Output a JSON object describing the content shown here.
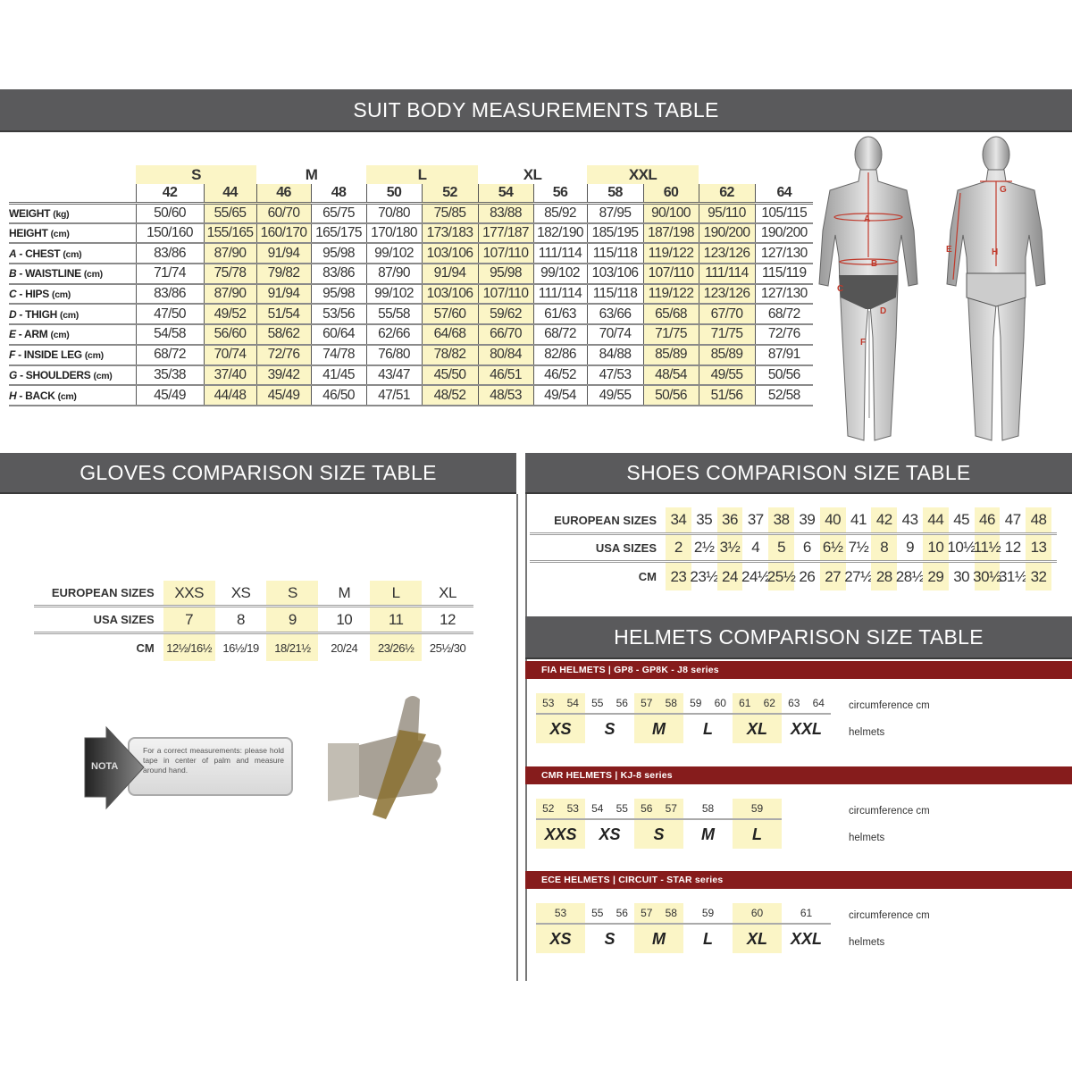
{
  "suit": {
    "title": "SUIT BODY MEASUREMENTS TABLE",
    "groups": [
      {
        "label": "",
        "span": 1,
        "highlight": false
      },
      {
        "label": "S",
        "span": 2,
        "highlight": true
      },
      {
        "label": "M",
        "span": 2,
        "highlight": false
      },
      {
        "label": "L",
        "span": 2,
        "highlight": true
      },
      {
        "label": "XL",
        "span": 2,
        "highlight": false
      },
      {
        "label": "XXL",
        "span": 2,
        "highlight": true
      },
      {
        "label": "",
        "span": 1,
        "highlight": false
      }
    ],
    "sizes": [
      "42",
      "44",
      "46",
      "48",
      "50",
      "52",
      "54",
      "56",
      "58",
      "60",
      "62",
      "64"
    ],
    "highlight_columns": [
      1,
      2,
      5,
      6,
      9,
      10
    ],
    "rows": [
      {
        "letter": "",
        "label": "WEIGHT",
        "unit": "(kg)",
        "values": [
          "50/60",
          "55/65",
          "60/70",
          "65/75",
          "70/80",
          "75/85",
          "83/88",
          "85/92",
          "87/95",
          "90/100",
          "95/110",
          "105/115"
        ]
      },
      {
        "letter": "",
        "label": "HEIGHT",
        "unit": "(cm)",
        "values": [
          "150/160",
          "155/165",
          "160/170",
          "165/175",
          "170/180",
          "173/183",
          "177/187",
          "182/190",
          "185/195",
          "187/198",
          "190/200",
          "190/200"
        ]
      },
      {
        "letter": "A",
        "label": " - CHEST",
        "unit": "(cm)",
        "values": [
          "83/86",
          "87/90",
          "91/94",
          "95/98",
          "99/102",
          "103/106",
          "107/110",
          "111/114",
          "115/118",
          "119/122",
          "123/126",
          "127/130"
        ]
      },
      {
        "letter": "B",
        "label": " - WAISTLINE",
        "unit": "(cm)",
        "values": [
          "71/74",
          "75/78",
          "79/82",
          "83/86",
          "87/90",
          "91/94",
          "95/98",
          "99/102",
          "103/106",
          "107/110",
          "111/114",
          "115/119"
        ]
      },
      {
        "letter": "C",
        "label": " - HIPS",
        "unit": "(cm)",
        "values": [
          "83/86",
          "87/90",
          "91/94",
          "95/98",
          "99/102",
          "103/106",
          "107/110",
          "111/114",
          "115/118",
          "119/122",
          "123/126",
          "127/130"
        ]
      },
      {
        "letter": "D",
        "label": " - THIGH",
        "unit": "(cm)",
        "values": [
          "47/50",
          "49/52",
          "51/54",
          "53/56",
          "55/58",
          "57/60",
          "59/62",
          "61/63",
          "63/66",
          "65/68",
          "67/70",
          "68/72"
        ]
      },
      {
        "letter": "E",
        "label": " - ARM",
        "unit": "(cm)",
        "values": [
          "54/58",
          "56/60",
          "58/62",
          "60/64",
          "62/66",
          "64/68",
          "66/70",
          "68/72",
          "70/74",
          "71/75",
          "71/75",
          "72/76"
        ]
      },
      {
        "letter": "F",
        "label": " - INSIDE LEG",
        "unit": "(cm)",
        "values": [
          "68/72",
          "70/74",
          "72/76",
          "74/78",
          "76/80",
          "78/82",
          "80/84",
          "82/86",
          "84/88",
          "85/89",
          "85/89",
          "87/91"
        ]
      },
      {
        "letter": "G",
        "label": " - SHOULDERS",
        "unit": "(cm)",
        "values": [
          "35/38",
          "37/40",
          "39/42",
          "41/45",
          "43/47",
          "45/50",
          "46/51",
          "46/52",
          "47/53",
          "48/54",
          "49/55",
          "50/56"
        ]
      },
      {
        "letter": "H",
        "label": " - BACK",
        "unit": "(cm)",
        "values": [
          "45/49",
          "44/48",
          "45/49",
          "46/50",
          "47/51",
          "48/52",
          "48/53",
          "49/54",
          "49/55",
          "50/56",
          "51/56",
          "52/58"
        ]
      }
    ],
    "figure_letters": {
      "front": [
        "A",
        "B",
        "C",
        "D",
        "E",
        "F"
      ],
      "back": [
        "G",
        "E",
        "H"
      ]
    },
    "figure_letter_color": "#c0392b"
  },
  "gloves": {
    "title": "GLOVES COMPARISON SIZE TABLE",
    "highlight_columns": [
      0,
      2,
      4
    ],
    "rows": [
      {
        "label": "EUROPEAN SIZES",
        "values": [
          "XXS",
          "XS",
          "S",
          "M",
          "L",
          "XL"
        ]
      },
      {
        "label": "USA SIZES",
        "values": [
          "7",
          "8",
          "9",
          "10",
          "11",
          "12"
        ]
      },
      {
        "label": "CM",
        "values": [
          "12½/16½",
          "16½/19",
          "18/21½",
          "20/24",
          "23/26½",
          "25½/30"
        ]
      }
    ],
    "note": {
      "badge": "NOTA",
      "text": "For a correct measurements: please hold tape in center of palm and measure around hand."
    },
    "icon": "thumbs-up-hand-with-tape"
  },
  "shoes": {
    "title": "SHOES COMPARISON SIZE TABLE",
    "highlight_columns": [
      0,
      2,
      4,
      6,
      8,
      10,
      12,
      14
    ],
    "rows": [
      {
        "label": "EUROPEAN SIZES",
        "values": [
          "34",
          "35",
          "36",
          "37",
          "38",
          "39",
          "40",
          "41",
          "42",
          "43",
          "44",
          "45",
          "46",
          "47",
          "48"
        ]
      },
      {
        "label": "USA SIZES",
        "values": [
          "2",
          "2½",
          "3½",
          "4",
          "5",
          "6",
          "6½",
          "7½",
          "8",
          "9",
          "10",
          "10½",
          "11½",
          "12",
          "13"
        ]
      },
      {
        "label": "CM",
        "values": [
          "23",
          "23½",
          "24",
          "24½",
          "25½",
          "26",
          "27",
          "27½",
          "28",
          "28½",
          "29",
          "30",
          "30½",
          "31½",
          "32"
        ]
      }
    ]
  },
  "helmets": {
    "title": "HELMETS COMPARISON SIZE TABLE",
    "circumference_label": "circumference cm",
    "helmets_label": "helmets",
    "groups": [
      {
        "title": "FIA HELMETS  |  GP8 - GP8K - J8 series",
        "sizes": [
          {
            "size": "XS",
            "nums": [
              "53",
              "54"
            ],
            "highlight": true
          },
          {
            "size": "S",
            "nums": [
              "55",
              "56"
            ],
            "highlight": false
          },
          {
            "size": "M",
            "nums": [
              "57",
              "58"
            ],
            "highlight": true
          },
          {
            "size": "L",
            "nums": [
              "59",
              "60"
            ],
            "highlight": false
          },
          {
            "size": "XL",
            "nums": [
              "61",
              "62"
            ],
            "highlight": true
          },
          {
            "size": "XXL",
            "nums": [
              "63",
              "64"
            ],
            "highlight": false
          }
        ]
      },
      {
        "title": "CMR HELMETS  |  KJ-8 series",
        "sizes": [
          {
            "size": "XXS",
            "nums": [
              "52",
              "53"
            ],
            "highlight": true
          },
          {
            "size": "XS",
            "nums": [
              "54",
              "55"
            ],
            "highlight": false
          },
          {
            "size": "S",
            "nums": [
              "56",
              "57"
            ],
            "highlight": true
          },
          {
            "size": "M",
            "nums": [
              "58"
            ],
            "highlight": false
          },
          {
            "size": "L",
            "nums": [
              "59"
            ],
            "highlight": true
          }
        ]
      },
      {
        "title": "ECE HELMETS  |  CIRCUIT - STAR series",
        "sizes": [
          {
            "size": "XS",
            "nums": [
              "53"
            ],
            "highlight": true
          },
          {
            "size": "S",
            "nums": [
              "55",
              "56"
            ],
            "highlight": false
          },
          {
            "size": "M",
            "nums": [
              "57",
              "58"
            ],
            "highlight": true
          },
          {
            "size": "L",
            "nums": [
              "59"
            ],
            "highlight": false
          },
          {
            "size": "XL",
            "nums": [
              "60"
            ],
            "highlight": true
          },
          {
            "size": "XXL",
            "nums": [
              "61"
            ],
            "highlight": false
          }
        ]
      }
    ]
  },
  "colors": {
    "header_band": "#5a5a5c",
    "highlight": "#fbf5c6",
    "helmet_bar": "#861c1c"
  }
}
